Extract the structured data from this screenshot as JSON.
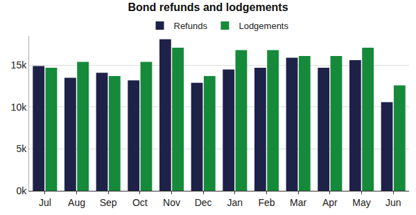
{
  "chart_data": {
    "type": "bar",
    "title": "Bond refunds and lodgements",
    "categories": [
      "Jul",
      "Aug",
      "Sep",
      "Oct",
      "Nov",
      "Dec",
      "Jan",
      "Feb",
      "Mar",
      "Apr",
      "May",
      "Jun"
    ],
    "series": [
      {
        "name": "Refunds",
        "color": "#1e2148",
        "values": [
          14900,
          13500,
          14100,
          13200,
          18100,
          12900,
          14500,
          14700,
          15900,
          14700,
          15600,
          10600
        ]
      },
      {
        "name": "Lodgements",
        "color": "#168a3b",
        "values": [
          14700,
          15400,
          13700,
          15400,
          17100,
          13700,
          16800,
          16800,
          16100,
          16100,
          17100,
          12600
        ]
      }
    ],
    "ylim": [
      0,
      18500
    ],
    "yticks": [
      {
        "value": 0,
        "label": "0k"
      },
      {
        "value": 5000,
        "label": "5k"
      },
      {
        "value": 10000,
        "label": "10k"
      },
      {
        "value": 15000,
        "label": "15k"
      }
    ],
    "grid": true,
    "legend": "top"
  }
}
